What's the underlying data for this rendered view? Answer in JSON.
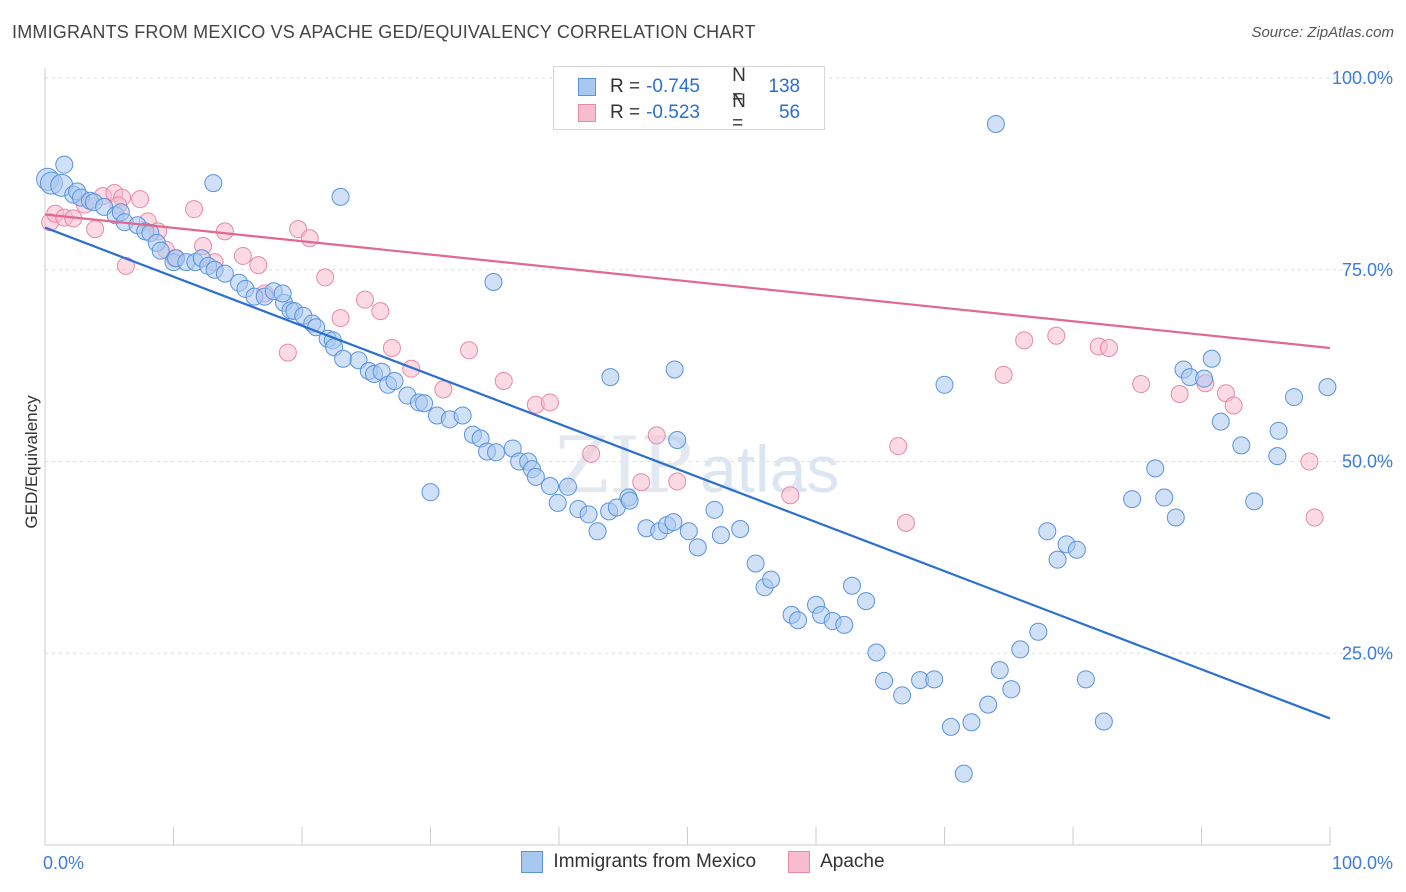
{
  "title": "IMMIGRANTS FROM MEXICO VS APACHE GED/EQUIVALENCY CORRELATION CHART",
  "source": "Source: ZipAtlas.com",
  "watermark": {
    "zip": "ZIP",
    "atlas": "atlas"
  },
  "legend_top": {
    "rows": [
      {
        "r_label": "R =",
        "r_value": "-0.745",
        "n_label": "N =",
        "n_value": "138"
      },
      {
        "r_label": "R =",
        "r_value": "-0.523",
        "n_label": "N =",
        "n_value": "56"
      }
    ]
  },
  "colors": {
    "blue_fill": "#a9c8f0",
    "blue_stroke": "#5a93dd",
    "blue_line": "#2b6fd1",
    "pink_fill": "#f7bccd",
    "pink_stroke": "#e889a6",
    "pink_line": "#e0698f",
    "axis_text": "#3b7dd8",
    "grid": "#dddddd"
  },
  "chart_data": {
    "type": "scatter",
    "title": "IMMIGRANTS FROM MEXICO VS APACHE GED/EQUIVALENCY CORRELATION CHART",
    "xlabel": "",
    "ylabel": "GED/Equivalency",
    "xlim": [
      0,
      100
    ],
    "ylim": [
      0,
      100
    ],
    "x_tick_labels": [
      "0.0%",
      "100.0%"
    ],
    "y_tick_labels": [
      "25.0%",
      "50.0%",
      "75.0%",
      "100.0%"
    ],
    "y_ticks": [
      25,
      50,
      75,
      100
    ],
    "grid": true,
    "legend_position": "bottom-center",
    "series": [
      {
        "name": "Immigrants from Mexico",
        "color": "#5a93dd",
        "r": -0.745,
        "n": 138,
        "trend": {
          "x": [
            0,
            100
          ],
          "y": [
            80.5,
            16.5
          ]
        },
        "points": [
          [
            0.2,
            86.8
          ],
          [
            0.5,
            86.3
          ],
          [
            1.3,
            86.0
          ],
          [
            2.2,
            84.8
          ],
          [
            2.5,
            85.2
          ],
          [
            2.8,
            84.4
          ],
          [
            3.5,
            84.0
          ],
          [
            3.8,
            83.8
          ],
          [
            4.6,
            83.2
          ],
          [
            5.5,
            82.1
          ],
          [
            5.9,
            82.5
          ],
          [
            6.2,
            81.2
          ],
          [
            7.2,
            80.8
          ],
          [
            7.8,
            80.0
          ],
          [
            8.2,
            79.8
          ],
          [
            8.7,
            78.5
          ],
          [
            9.0,
            77.5
          ],
          [
            10.0,
            76.0
          ],
          [
            10.2,
            76.5
          ],
          [
            11.0,
            76.0
          ],
          [
            11.7,
            76.0
          ],
          [
            12.2,
            76.5
          ],
          [
            12.7,
            75.5
          ],
          [
            13.2,
            75.0
          ],
          [
            14.0,
            74.5
          ],
          [
            15.1,
            73.3
          ],
          [
            15.6,
            72.5
          ],
          [
            16.3,
            71.5
          ],
          [
            17.1,
            71.5
          ],
          [
            17.8,
            72.2
          ],
          [
            18.6,
            70.7
          ],
          [
            18.5,
            71.9
          ],
          [
            19.1,
            69.7
          ],
          [
            19.4,
            69.6
          ],
          [
            20.1,
            69.0
          ],
          [
            20.8,
            68.0
          ],
          [
            21.1,
            67.5
          ],
          [
            22.0,
            66.0
          ],
          [
            22.4,
            65.8
          ],
          [
            22.5,
            64.9
          ],
          [
            23.2,
            63.4
          ],
          [
            24.4,
            63.2
          ],
          [
            25.2,
            61.8
          ],
          [
            25.6,
            61.4
          ],
          [
            26.2,
            61.7
          ],
          [
            26.7,
            60.0
          ],
          [
            27.2,
            60.5
          ],
          [
            28.2,
            58.6
          ],
          [
            29.1,
            57.7
          ],
          [
            29.5,
            57.6
          ],
          [
            30.5,
            56.0
          ],
          [
            31.5,
            55.5
          ],
          [
            32.5,
            56.0
          ],
          [
            33.3,
            53.5
          ],
          [
            33.9,
            53.0
          ],
          [
            34.4,
            51.3
          ],
          [
            35.1,
            51.2
          ],
          [
            36.4,
            51.7
          ],
          [
            36.9,
            50.0
          ],
          [
            37.6,
            50.0
          ],
          [
            37.9,
            49.0
          ],
          [
            38.2,
            48.0
          ],
          [
            39.3,
            46.8
          ],
          [
            39.9,
            44.6
          ],
          [
            40.7,
            46.7
          ],
          [
            41.5,
            43.8
          ],
          [
            42.3,
            43.1
          ],
          [
            43.0,
            40.9
          ],
          [
            43.9,
            43.5
          ],
          [
            44.5,
            44.0
          ],
          [
            45.4,
            45.3
          ],
          [
            45.5,
            44.9
          ],
          [
            46.8,
            41.3
          ],
          [
            47.8,
            40.9
          ],
          [
            48.4,
            41.7
          ],
          [
            48.9,
            42.1
          ],
          [
            49.2,
            52.8
          ],
          [
            50.1,
            40.9
          ],
          [
            50.8,
            38.8
          ],
          [
            52.1,
            43.7
          ],
          [
            52.6,
            40.4
          ],
          [
            54.1,
            41.2
          ],
          [
            55.3,
            36.7
          ],
          [
            56.0,
            33.6
          ],
          [
            56.5,
            34.6
          ],
          [
            58.1,
            30.0
          ],
          [
            58.6,
            29.3
          ],
          [
            60.0,
            31.3
          ],
          [
            60.4,
            30.0
          ],
          [
            61.3,
            29.2
          ],
          [
            62.2,
            28.7
          ],
          [
            62.8,
            33.8
          ],
          [
            63.9,
            31.8
          ],
          [
            64.7,
            25.1
          ],
          [
            65.3,
            21.4
          ],
          [
            66.7,
            19.5
          ],
          [
            68.1,
            21.5
          ],
          [
            69.2,
            21.6
          ],
          [
            70.5,
            15.4
          ],
          [
            71.5,
            9.3
          ],
          [
            72.1,
            16.0
          ],
          [
            73.4,
            18.3
          ],
          [
            74.3,
            22.8
          ],
          [
            75.2,
            20.3
          ],
          [
            75.9,
            25.5
          ],
          [
            77.3,
            27.8
          ],
          [
            78.0,
            40.9
          ],
          [
            78.8,
            37.2
          ],
          [
            79.5,
            39.2
          ],
          [
            80.3,
            38.5
          ],
          [
            81.0,
            21.6
          ],
          [
            82.4,
            16.1
          ],
          [
            84.6,
            45.1
          ],
          [
            86.4,
            49.1
          ],
          [
            87.1,
            45.3
          ],
          [
            88.0,
            42.7
          ],
          [
            88.6,
            62.0
          ],
          [
            89.1,
            61.0
          ],
          [
            90.2,
            60.8
          ],
          [
            90.8,
            63.4
          ],
          [
            91.5,
            55.2
          ],
          [
            93.1,
            52.1
          ],
          [
            94.1,
            44.8
          ],
          [
            95.9,
            50.7
          ],
          [
            97.2,
            58.4
          ],
          [
            99.8,
            59.7
          ],
          [
            1.5,
            88.7
          ],
          [
            13.1,
            86.3
          ],
          [
            74.0,
            94.0
          ],
          [
            49.0,
            62.0
          ],
          [
            23.0,
            84.5
          ],
          [
            34.9,
            73.4
          ],
          [
            70.0,
            60.0
          ],
          [
            44.0,
            61.0
          ],
          [
            96.0,
            54.0
          ],
          [
            30.0,
            46.0
          ]
        ]
      },
      {
        "name": "Apache",
        "color": "#e889a6",
        "r": -0.523,
        "n": 56,
        "trend": {
          "x": [
            0,
            100
          ],
          "y": [
            82.2,
            64.8
          ]
        },
        "points": [
          [
            0.4,
            81.2
          ],
          [
            0.8,
            82.3
          ],
          [
            1.5,
            81.8
          ],
          [
            2.2,
            81.7
          ],
          [
            3.1,
            83.5
          ],
          [
            3.9,
            80.3
          ],
          [
            4.5,
            84.6
          ],
          [
            5.4,
            85.0
          ],
          [
            6.0,
            84.4
          ],
          [
            5.7,
            83.4
          ],
          [
            6.3,
            75.5
          ],
          [
            7.4,
            84.2
          ],
          [
            8.0,
            81.3
          ],
          [
            8.8,
            80.0
          ],
          [
            9.4,
            77.6
          ],
          [
            10.1,
            76.5
          ],
          [
            11.6,
            82.9
          ],
          [
            12.3,
            78.1
          ],
          [
            13.2,
            76.0
          ],
          [
            14.0,
            80.0
          ],
          [
            15.4,
            76.8
          ],
          [
            16.6,
            75.6
          ],
          [
            17.1,
            71.9
          ],
          [
            18.9,
            64.2
          ],
          [
            19.7,
            80.3
          ],
          [
            20.6,
            79.1
          ],
          [
            21.8,
            74.0
          ],
          [
            23.0,
            68.7
          ],
          [
            24.9,
            71.1
          ],
          [
            26.1,
            69.6
          ],
          [
            27.0,
            64.8
          ],
          [
            28.5,
            62.1
          ],
          [
            31.0,
            59.4
          ],
          [
            33.0,
            64.5
          ],
          [
            35.7,
            60.5
          ],
          [
            38.2,
            57.4
          ],
          [
            39.3,
            57.7
          ],
          [
            42.5,
            51.0
          ],
          [
            46.4,
            47.3
          ],
          [
            47.6,
            53.4
          ],
          [
            49.2,
            47.4
          ],
          [
            58.0,
            45.6
          ],
          [
            66.4,
            52.0
          ],
          [
            67.0,
            42.0
          ],
          [
            74.6,
            61.3
          ],
          [
            76.2,
            65.8
          ],
          [
            78.7,
            66.4
          ],
          [
            82.0,
            65.0
          ],
          [
            82.8,
            64.8
          ],
          [
            85.3,
            60.1
          ],
          [
            88.3,
            58.8
          ],
          [
            90.3,
            60.2
          ],
          [
            91.9,
            58.9
          ],
          [
            92.5,
            57.3
          ],
          [
            98.4,
            50.0
          ],
          [
            98.8,
            42.7
          ]
        ]
      }
    ]
  },
  "legend_bottom": [
    {
      "label": "Immigrants from Mexico"
    },
    {
      "label": "Apache"
    }
  ]
}
